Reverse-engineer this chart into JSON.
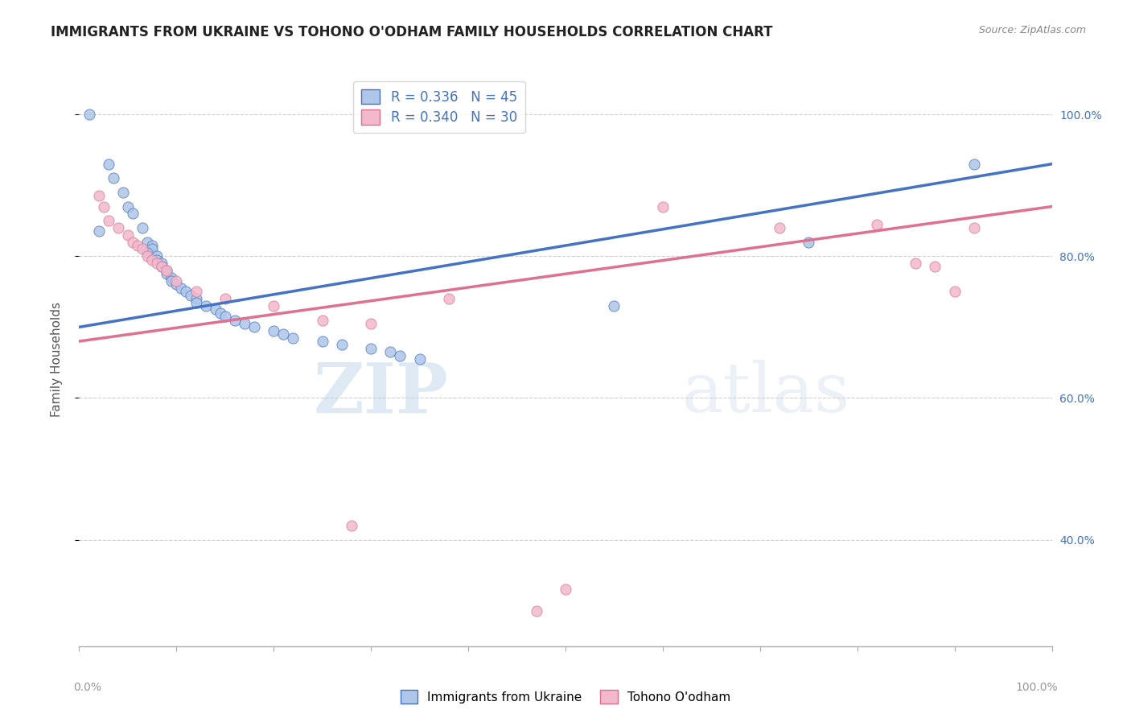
{
  "title": "IMMIGRANTS FROM UKRAINE VS TOHONO O'ODHAM FAMILY HOUSEHOLDS CORRELATION CHART",
  "source": "Source: ZipAtlas.com",
  "ylabel": "Family Households",
  "legend1_label": "R = 0.336   N = 45",
  "legend2_label": "R = 0.340   N = 30",
  "legend1_facecolor": "#aec6e8",
  "legend2_facecolor": "#f2b8cc",
  "line1_color": "#4472c4",
  "line2_color": "#e07090",
  "watermark_zip": "ZIP",
  "watermark_atlas": "atlas",
  "blue_scatter": [
    [
      1.0,
      100.0
    ],
    [
      3.0,
      93.0
    ],
    [
      3.5,
      91.0
    ],
    [
      4.5,
      89.0
    ],
    [
      5.0,
      87.0
    ],
    [
      5.5,
      86.0
    ],
    [
      2.0,
      83.5
    ],
    [
      6.5,
      84.0
    ],
    [
      7.0,
      82.0
    ],
    [
      7.5,
      81.5
    ],
    [
      7.5,
      81.0
    ],
    [
      7.0,
      80.5
    ],
    [
      8.0,
      80.0
    ],
    [
      8.0,
      79.5
    ],
    [
      8.5,
      79.0
    ],
    [
      8.5,
      78.5
    ],
    [
      9.0,
      78.0
    ],
    [
      9.0,
      77.5
    ],
    [
      9.5,
      77.0
    ],
    [
      9.5,
      76.5
    ],
    [
      10.0,
      76.0
    ],
    [
      10.5,
      75.5
    ],
    [
      11.0,
      75.0
    ],
    [
      11.5,
      74.5
    ],
    [
      12.0,
      74.0
    ],
    [
      12.0,
      73.5
    ],
    [
      13.0,
      73.0
    ],
    [
      14.0,
      72.5
    ],
    [
      14.5,
      72.0
    ],
    [
      15.0,
      71.5
    ],
    [
      16.0,
      71.0
    ],
    [
      17.0,
      70.5
    ],
    [
      18.0,
      70.0
    ],
    [
      20.0,
      69.5
    ],
    [
      21.0,
      69.0
    ],
    [
      22.0,
      68.5
    ],
    [
      25.0,
      68.0
    ],
    [
      27.0,
      67.5
    ],
    [
      30.0,
      67.0
    ],
    [
      32.0,
      66.5
    ],
    [
      33.0,
      66.0
    ],
    [
      35.0,
      65.5
    ],
    [
      55.0,
      73.0
    ],
    [
      75.0,
      82.0
    ],
    [
      92.0,
      93.0
    ]
  ],
  "pink_scatter": [
    [
      2.0,
      88.5
    ],
    [
      2.5,
      87.0
    ],
    [
      3.0,
      85.0
    ],
    [
      4.0,
      84.0
    ],
    [
      5.0,
      83.0
    ],
    [
      5.5,
      82.0
    ],
    [
      6.0,
      81.5
    ],
    [
      6.5,
      81.0
    ],
    [
      7.0,
      80.0
    ],
    [
      7.5,
      79.5
    ],
    [
      8.0,
      79.0
    ],
    [
      8.5,
      78.5
    ],
    [
      9.0,
      78.0
    ],
    [
      10.0,
      76.5
    ],
    [
      12.0,
      75.0
    ],
    [
      15.0,
      74.0
    ],
    [
      20.0,
      73.0
    ],
    [
      25.0,
      71.0
    ],
    [
      30.0,
      70.5
    ],
    [
      38.0,
      74.0
    ],
    [
      60.0,
      87.0
    ],
    [
      72.0,
      84.0
    ],
    [
      82.0,
      84.5
    ],
    [
      86.0,
      79.0
    ],
    [
      88.0,
      78.5
    ],
    [
      90.0,
      75.0
    ],
    [
      92.0,
      84.0
    ],
    [
      50.0,
      33.0
    ],
    [
      28.0,
      42.0
    ],
    [
      47.0,
      30.0
    ]
  ],
  "xlim": [
    0,
    100
  ],
  "ylim": [
    25,
    106
  ],
  "x_ticks": [
    0,
    10,
    20,
    30,
    40,
    50,
    60,
    70,
    80,
    90,
    100
  ],
  "y_ticks_right": [
    40,
    60,
    80,
    100
  ],
  "y_tick_labels_right": [
    "40.0%",
    "60.0%",
    "80.0%",
    "100.0%"
  ],
  "grid_color": "#d0d0d0",
  "bg_color": "#ffffff",
  "title_color": "#222222",
  "source_color": "#888888",
  "tick_color": "#999999"
}
